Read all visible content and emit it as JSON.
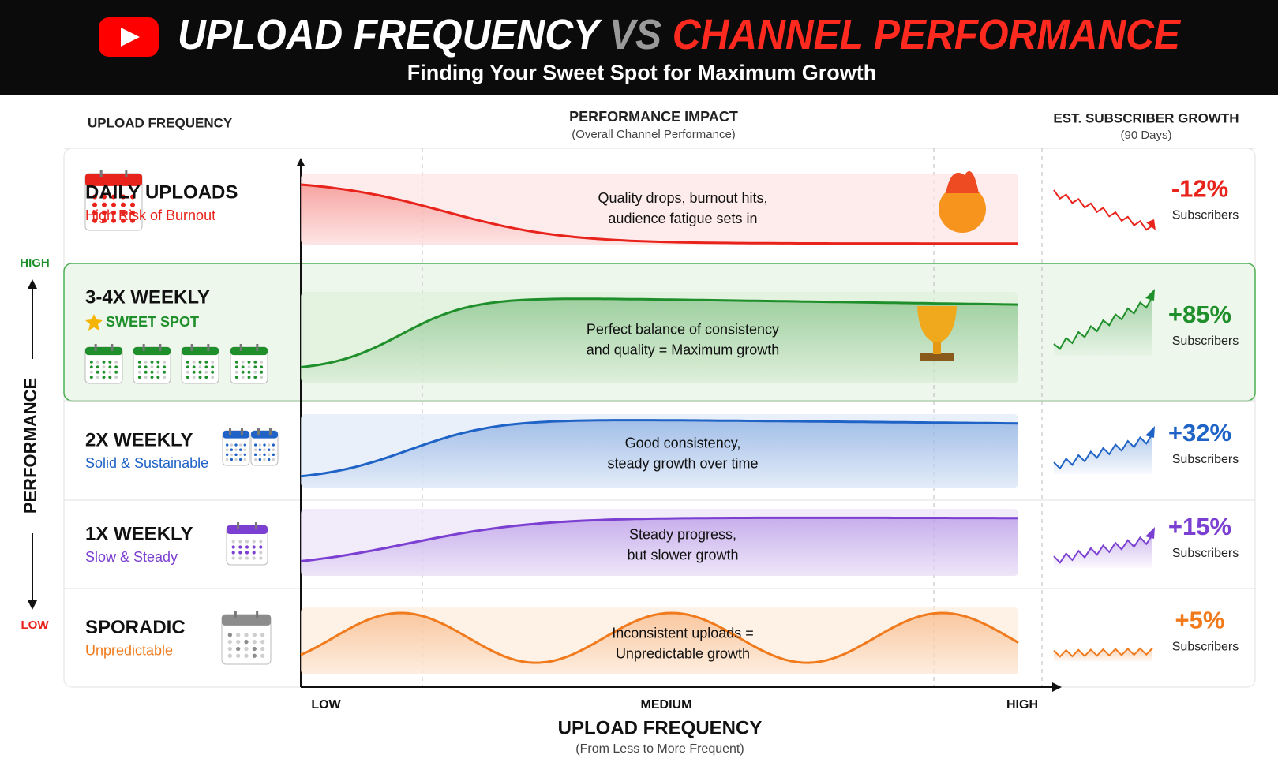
{
  "header": {
    "title_part1": "UPLOAD FREQUENCY",
    "vs": "VS",
    "title_part2": "CHANNEL PERFORMANCE",
    "subtitle": "Finding Your Sweet Spot for Maximum Growth"
  },
  "columns": {
    "left": "UPLOAD FREQUENCY",
    "middle": "PERFORMANCE IMPACT",
    "middle_sub": "(Overall Channel Performance)",
    "right": "EST. SUBSCRIBER GROWTH",
    "right_sub": "(90 Days)"
  },
  "y_axis": {
    "label": "PERFORMANCE",
    "high": "HIGH",
    "low": "LOW"
  },
  "x_axis": {
    "title": "UPLOAD FREQUENCY",
    "subtitle": "(From Less to More Frequent)",
    "low": "LOW",
    "medium": "MEDIUM",
    "high": "HIGH"
  },
  "rows": [
    {
      "name": "DAILY UPLOADS",
      "tag": "High Risk of Burnout",
      "description": [
        "Quality drops, burnout hits,",
        "audience fatigue sets in"
      ],
      "growth": "-12%",
      "growth_label": "Subscribers"
    },
    {
      "name": "3-4X WEEKLY",
      "tag": "SWEET SPOT",
      "description": [
        "Perfect balance of consistency",
        "and quality = Maximum growth"
      ],
      "growth": "+85%",
      "growth_label": "Subscribers"
    },
    {
      "name": "2X WEEKLY",
      "tag": "Solid & Sustainable",
      "description": [
        "Good consistency,",
        "steady growth over time"
      ],
      "growth": "+32%",
      "growth_label": "Subscribers"
    },
    {
      "name": "1X WEEKLY",
      "tag": "Slow & Steady",
      "description": [
        "Steady progress,",
        "but slower growth"
      ],
      "growth": "+15%",
      "growth_label": "Subscribers"
    },
    {
      "name": "SPORADIC",
      "tag": "Unpredictable",
      "description": [
        "Inconsistent uploads =",
        "Unpredictable growth"
      ],
      "growth": "+5%",
      "growth_label": "Subscribers"
    }
  ]
}
